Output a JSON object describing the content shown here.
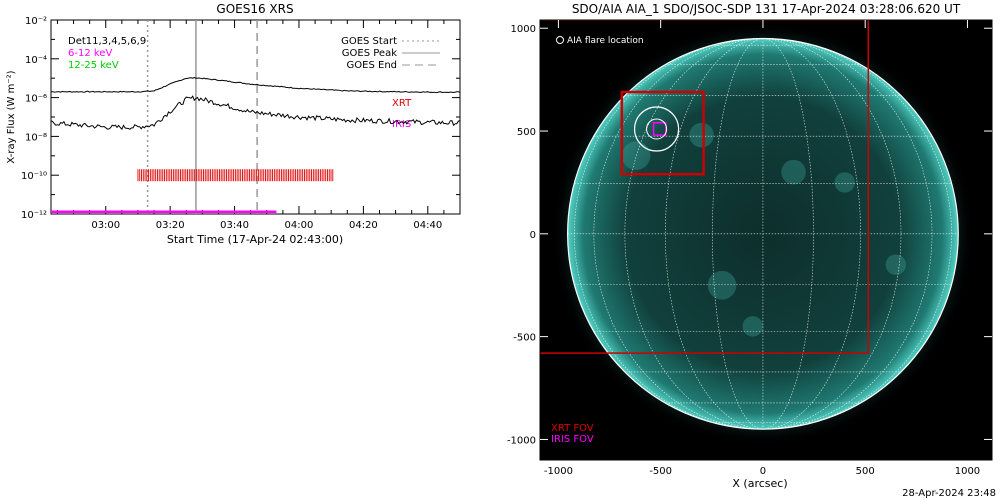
{
  "left_plot": {
    "title": "GOES16 XRS",
    "ylabel": "X-ray Flux (W m⁻²)",
    "xlabel": "Start Time (17-Apr-24 02:43:00)",
    "legend_left": [
      {
        "text": "Det11,3,4,5,6,9",
        "color": "#000000"
      },
      {
        "text": "6-12 keV",
        "color": "#ff00ff"
      },
      {
        "text": "12-25 keV",
        "color": "#00cc00"
      }
    ],
    "legend_right": [
      {
        "text": "GOES Start",
        "style": "dotted"
      },
      {
        "text": "GOES Peak",
        "style": "solid"
      },
      {
        "text": "GOES End",
        "style": "dashed"
      }
    ],
    "label_xrt": "XRT",
    "label_iris": "IRIS"
  },
  "chart_data": [
    {
      "type": "line",
      "title": "GOES16 XRS",
      "xlabel": "Start Time (17-Apr-24 02:43:00)",
      "ylabel": "X-ray Flux (W m⁻²)",
      "y_scale": "log",
      "ylim": [
        1e-12,
        0.01
      ],
      "xlim": [
        "02:43",
        "04:50"
      ],
      "x_ticks": [
        "03:00",
        "03:20",
        "03:40",
        "04:00",
        "04:20",
        "04:40"
      ],
      "y_ticks": [
        "10⁻¹²",
        "10⁻¹⁰",
        "10⁻⁸",
        "10⁻⁶",
        "10⁻⁴",
        "10⁻²"
      ],
      "series": [
        {
          "name": "long",
          "color": "#000000",
          "x": [
            "02:43",
            "03:00",
            "03:10",
            "03:15",
            "03:20",
            "03:25",
            "03:28",
            "03:35",
            "03:45",
            "04:00",
            "04:15",
            "04:30",
            "04:45",
            "04:50"
          ],
          "y": [
            2e-06,
            2e-06,
            2e-06,
            2.2e-06,
            5e-06,
            1e-05,
            1.05e-05,
            8e-06,
            5e-06,
            3e-06,
            2.2e-06,
            2e-06,
            1.9e-06,
            1.9e-06
          ]
        },
        {
          "name": "short",
          "color": "#000000",
          "x": [
            "02:43",
            "03:00",
            "03:10",
            "03:15",
            "03:20",
            "03:25",
            "03:28",
            "03:35",
            "03:45",
            "04:00",
            "04:15",
            "04:30",
            "04:45",
            "04:50"
          ],
          "y": [
            5e-08,
            3e-08,
            3e-08,
            4e-08,
            2e-07,
            8e-07,
            1e-06,
            5e-07,
            1.8e-07,
            1e-07,
            7e-08,
            6e-08,
            5e-08,
            5e-08
          ]
        }
      ],
      "vlines": [
        {
          "label": "GOES Start",
          "x": "03:13",
          "style": "dotted"
        },
        {
          "label": "GOES Peak",
          "x": "03:28",
          "style": "solid"
        },
        {
          "label": "GOES End",
          "x": "03:47",
          "style": "dashed"
        }
      ],
      "xrt_coverage": {
        "x_start": "03:10",
        "x_end": "04:11",
        "y": 1e-10,
        "color": "#dd0000"
      },
      "iris_coverage": {
        "x_start": "02:43",
        "x_end": "03:53",
        "y": 1.3e-12,
        "color": "#ff00ff"
      }
    },
    {
      "type": "map",
      "title": "SDO/AIA AIA_1 SDO/JSOC-SDP 131 17-Apr-2024 03:28:06.620 UT",
      "xlabel": "X (arcsec)",
      "xlim": [
        -1090,
        1120
      ],
      "ylim": [
        -1100,
        1040
      ],
      "x_ticks": [
        -1000,
        -500,
        0,
        500,
        1000
      ],
      "y_ticks": [
        -1000,
        -500,
        0,
        500,
        1000
      ],
      "solar_radius": 955,
      "flare_location": {
        "x": -520,
        "y": 510
      },
      "xrt_fov": {
        "x": [
          -1095,
          515
        ],
        "y": [
          -580,
          1040
        ]
      },
      "xrt_box": {
        "x": [
          -690,
          -290
        ],
        "y": [
          290,
          690
        ]
      },
      "iris_fov": {
        "x": [
          -535,
          -475
        ],
        "y": [
          480,
          540
        ]
      },
      "legend_flare": "AIA flare location",
      "legend_xrt": "XRT FOV",
      "legend_iris": "IRIS FOV",
      "footer": "28-Apr-2024 23:48"
    }
  ]
}
